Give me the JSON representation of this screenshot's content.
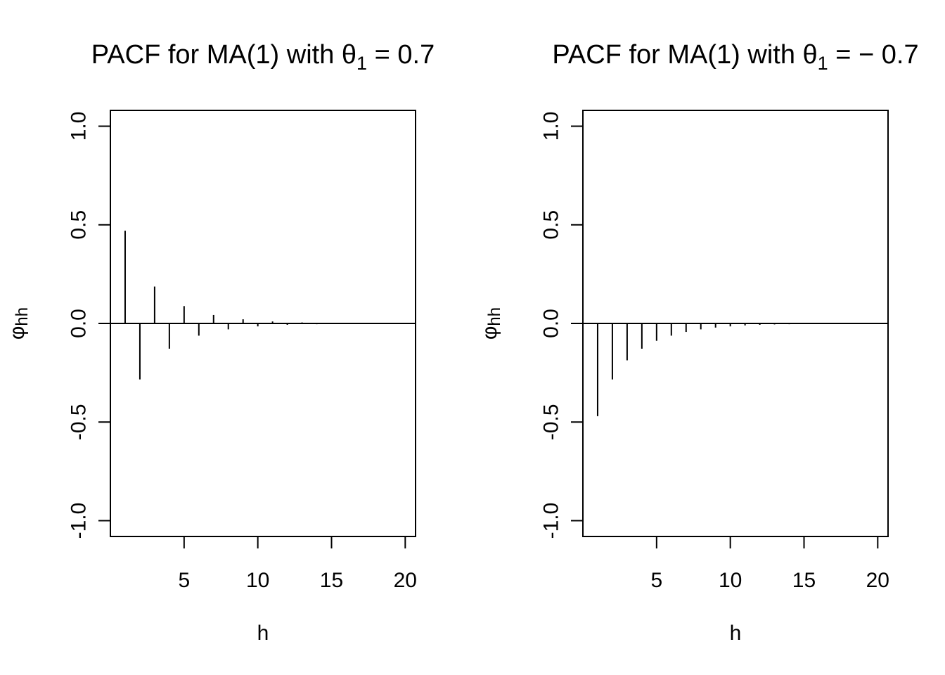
{
  "chart_data": [
    {
      "type": "bar",
      "title_prefix": "PACF for MA(1) with ",
      "title_symbol": "θ",
      "title_subscript": "1",
      "title_suffix": " = 0.7",
      "xlabel": "h",
      "ylabel_symbol": "φ",
      "ylabel_subscript": "hh",
      "xlim": [
        0,
        20.7
      ],
      "ylim": [
        -1.08,
        1.08
      ],
      "xticks": [
        5,
        10,
        15,
        20
      ],
      "xtick_labels": [
        "5",
        "10",
        "15",
        "20"
      ],
      "yticks": [
        -1.0,
        -0.5,
        0.0,
        0.5,
        1.0
      ],
      "ytick_labels": [
        "-1.0",
        "-0.5",
        "0.0",
        "0.5",
        "1.0"
      ],
      "x": [
        1,
        2,
        3,
        4,
        5,
        6,
        7,
        8,
        9,
        10,
        11,
        12,
        13,
        14,
        15,
        16,
        17,
        18,
        19,
        20
      ],
      "values": [
        0.47,
        -0.284,
        0.187,
        -0.128,
        0.088,
        -0.062,
        0.043,
        -0.03,
        0.021,
        -0.015,
        0.01,
        -0.007,
        0.005,
        -0.004,
        0.003,
        -0.002,
        0.001,
        -0.001,
        0.001,
        -0.0005
      ]
    },
    {
      "type": "bar",
      "title_prefix": "PACF for MA(1) with ",
      "title_symbol": "θ",
      "title_subscript": "1",
      "title_suffix": " = − 0.7",
      "xlabel": "h",
      "ylabel_symbol": "φ",
      "ylabel_subscript": "hh",
      "xlim": [
        0,
        20.7
      ],
      "ylim": [
        -1.08,
        1.08
      ],
      "xticks": [
        5,
        10,
        15,
        20
      ],
      "xtick_labels": [
        "5",
        "10",
        "15",
        "20"
      ],
      "yticks": [
        -1.0,
        -0.5,
        0.0,
        0.5,
        1.0
      ],
      "ytick_labels": [
        "-1.0",
        "-0.5",
        "0.0",
        "0.5",
        "1.0"
      ],
      "x": [
        1,
        2,
        3,
        4,
        5,
        6,
        7,
        8,
        9,
        10,
        11,
        12,
        13,
        14,
        15,
        16,
        17,
        18,
        19,
        20
      ],
      "values": [
        -0.47,
        -0.284,
        -0.187,
        -0.128,
        -0.088,
        -0.062,
        -0.043,
        -0.03,
        -0.021,
        -0.015,
        -0.01,
        -0.007,
        -0.005,
        -0.004,
        -0.003,
        -0.002,
        -0.001,
        -0.001,
        -0.001,
        -0.0005
      ]
    }
  ]
}
